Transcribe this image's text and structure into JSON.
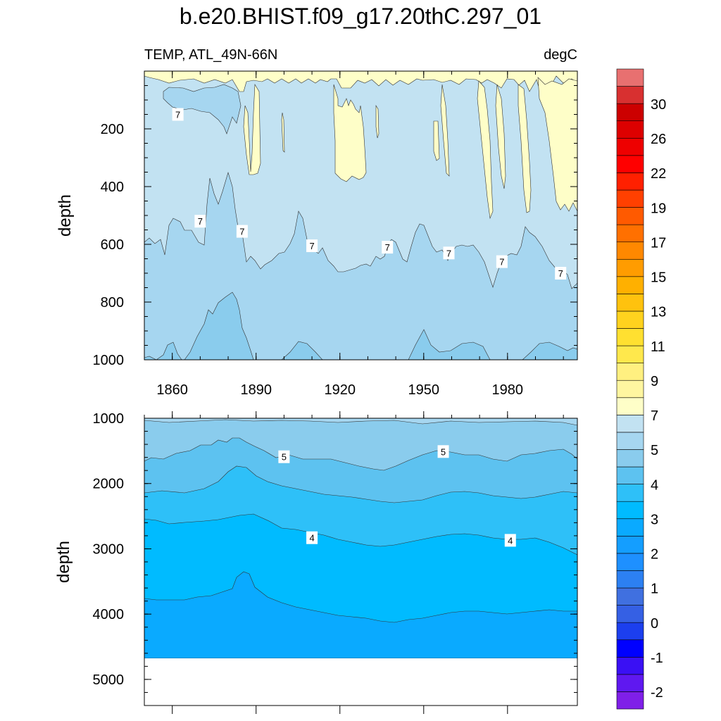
{
  "figure": {
    "title": "b.e20.BHIST.f09_g17.20thC.297_01",
    "left_subtitle": "TEMP, ATL_49N-66N",
    "right_subtitle": "degC"
  },
  "colors": {
    "frame": "#000000",
    "level_fills": [
      "#7f1fe8",
      "#5f18f0",
      "#3a10f4",
      "#0000ff",
      "#1c3fee",
      "#3560e4",
      "#4070e0",
      "#2c80f2",
      "#1e90ff",
      "#149eff",
      "#0aaaff",
      "#00bbff",
      "#2ec0f8",
      "#5dc2f0",
      "#8acced",
      "#a6d6f0",
      "#c2e2f2",
      "#fefec8",
      "#fff6a0",
      "#fff080",
      "#ffe84c",
      "#ffe030",
      "#ffd21e",
      "#ffc20e",
      "#ffb000",
      "#ff9c00",
      "#ff8800",
      "#ff7000",
      "#ff5a00",
      "#ff4000",
      "#ff2000",
      "#ff0000",
      "#ee0000",
      "#dd0000",
      "#cc0000",
      "#d83030",
      "#e87070",
      "#ffb0b0"
    ]
  },
  "chart_data": [
    {
      "type": "contour",
      "panel": "upper",
      "variable": "TEMP",
      "units": "degC",
      "region": "ATL_49N-66N",
      "ylabel": "depth",
      "ylim": [
        0,
        1000
      ],
      "y_reversed": true,
      "xlim": [
        1850,
        2005
      ],
      "x_ticks": [
        1860,
        1890,
        1920,
        1950,
        1980
      ],
      "x_tick_labels": [
        "1860",
        "1890",
        "1920",
        "1950",
        "1980"
      ],
      "y_ticks": [
        200,
        400,
        600,
        800,
        1000
      ],
      "y_tick_labels": [
        "200",
        "400",
        "600",
        "800",
        "1000"
      ],
      "contour_labels": [
        {
          "text": "7",
          "year": 1862,
          "depth": 150
        },
        {
          "text": "7",
          "year": 1870,
          "depth": 520
        },
        {
          "text": "7",
          "year": 1885,
          "depth": 555
        },
        {
          "text": "7",
          "year": 1910,
          "depth": 605
        },
        {
          "text": "7",
          "year": 1937,
          "depth": 610
        },
        {
          "text": "7",
          "year": 1959,
          "depth": 630
        },
        {
          "text": "7",
          "year": 1978,
          "depth": 660
        },
        {
          "text": "7",
          "year": 1999,
          "depth": 700
        }
      ],
      "bands": [
        {
          "fill_level": "9-8",
          "color": "#fefec8",
          "description": "warm near-surface tongues"
        },
        {
          "fill_level": "7-8",
          "color": "#c2e2f2",
          "top_depth": 0,
          "bottom_depth": 620
        },
        {
          "fill_level": "6-7",
          "color": "#a6d6f0",
          "top_depth": 620,
          "bottom_depth": 1000
        },
        {
          "fill_level": "5-6",
          "color": "#8acced",
          "description": "deep patches near 1000"
        }
      ]
    },
    {
      "type": "contour",
      "panel": "lower",
      "variable": "TEMP",
      "units": "degC",
      "ylabel": "depth",
      "ylim": [
        1000,
        5400
      ],
      "y_reversed": true,
      "xlim": [
        1850,
        2005
      ],
      "y_ticks": [
        1000,
        2000,
        3000,
        4000,
        5000
      ],
      "y_tick_labels": [
        "1000",
        "2000",
        "3000",
        "4000",
        "5000"
      ],
      "contour_labels": [
        {
          "text": "5",
          "year": 1900,
          "depth": 1590
        },
        {
          "text": "5",
          "year": 1957,
          "depth": 1510
        },
        {
          "text": "4",
          "year": 1910,
          "depth": 2830
        },
        {
          "text": "4",
          "year": 1981,
          "depth": 2870
        }
      ],
      "data_bottom_depth": 4620,
      "interfaces": [
        {
          "name": "6/5",
          "depth_at": [
            [
              1850,
              1650
            ],
            [
              1885,
              1300
            ],
            [
              1920,
              1700
            ],
            [
              1937,
              1790
            ],
            [
              1960,
              1650
            ],
            [
              1990,
              1550
            ],
            [
              2005,
              1660
            ]
          ]
        },
        {
          "name": "5/4.5",
          "depth_at": [
            [
              1850,
              2100
            ],
            [
              1885,
              1600
            ],
            [
              1920,
              2200
            ],
            [
              1937,
              2300
            ],
            [
              1960,
              2150
            ],
            [
              1990,
              2200
            ],
            [
              2005,
              2150
            ]
          ]
        },
        {
          "name": "4/3.5",
          "depth_at": [
            [
              1850,
              2550
            ],
            [
              1885,
              2450
            ],
            [
              1920,
              2850
            ],
            [
              1937,
              2920
            ],
            [
              1960,
              2800
            ],
            [
              1990,
              2880
            ],
            [
              2005,
              3070
            ]
          ]
        },
        {
          "name": "3.5/3",
          "depth_at": [
            [
              1850,
              3750
            ],
            [
              1886,
              3350
            ],
            [
              1920,
              4050
            ],
            [
              1940,
              4120
            ],
            [
              1960,
              3950
            ],
            [
              1990,
              3940
            ],
            [
              2005,
              3950
            ]
          ]
        }
      ]
    }
  ],
  "colorbar": {
    "labels": [
      "30",
      "26",
      "22",
      "19",
      "17",
      "15",
      "13",
      "11",
      "9",
      "7",
      "5",
      "4",
      "3",
      "2",
      "1",
      "0",
      "-1",
      "-2"
    ],
    "box_count": 37
  }
}
